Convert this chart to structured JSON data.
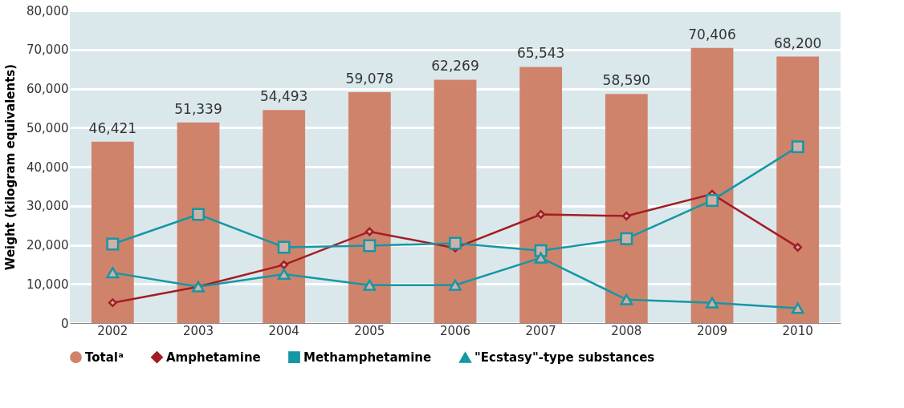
{
  "chart_data": {
    "type": "bar",
    "ylabel": "Weight (kilogram equivalents)",
    "categories": [
      "2002",
      "2003",
      "2004",
      "2005",
      "2006",
      "2007",
      "2008",
      "2009",
      "2010"
    ],
    "series": [
      {
        "name": "Totalᵃ",
        "color": "#d0836b",
        "values": [
          46421,
          51339,
          54493,
          59078,
          62269,
          65543,
          58590,
          70406,
          68200
        ],
        "value_labels": [
          "46,421",
          "51,339",
          "54,493",
          "59,078",
          "62,269",
          "65,543",
          "58,590",
          "70,406",
          "68,200"
        ]
      },
      {
        "name": "Amphetamine",
        "type": "line",
        "marker": "diamond",
        "color": "#a31d24",
        "values": [
          5200,
          9300,
          14900,
          23400,
          19200,
          27800,
          27400,
          33000,
          19400
        ]
      },
      {
        "name": "Methamphetamine",
        "type": "line",
        "marker": "square",
        "color": "#1597a5",
        "values": [
          20200,
          27800,
          19400,
          19800,
          20400,
          18500,
          21600,
          31400,
          45100
        ]
      },
      {
        "name": "\"Ecstasy\"-type substances",
        "type": "line",
        "marker": "triangle",
        "color": "#1597a5",
        "values": [
          12900,
          9300,
          12500,
          9700,
          9700,
          16700,
          6000,
          5200,
          3800
        ]
      }
    ],
    "ylim": [
      0,
      80000
    ],
    "yticks": [
      0,
      {
        "value": 10000,
        "label": "10,000"
      },
      {
        "value": 20000,
        "label": "20,000"
      },
      {
        "value": 30000,
        "label": "30,000"
      },
      {
        "value": 40000,
        "label": "40,000"
      },
      {
        "value": 50000,
        "label": "50,000"
      },
      {
        "value": 60000,
        "label": "60,000"
      },
      {
        "value": 70000,
        "label": "70,000"
      },
      {
        "value": 80000,
        "label": "80,000"
      }
    ],
    "grid": "y",
    "legend": "bottom"
  }
}
